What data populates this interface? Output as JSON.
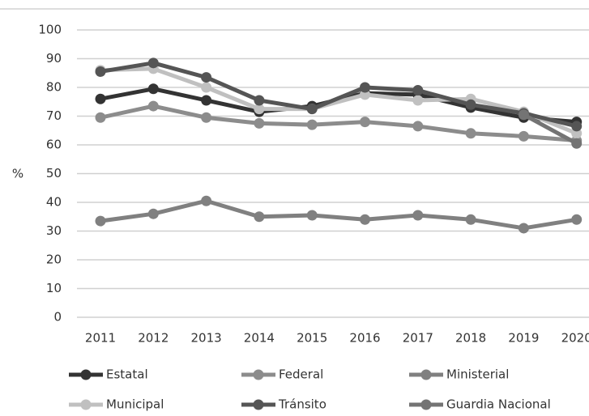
{
  "chart_data": {
    "type": "line",
    "y_label": "%",
    "categories": [
      "2011",
      "2012",
      "2013",
      "2014",
      "2015",
      "2016",
      "2017",
      "2018",
      "2019",
      "2020"
    ],
    "series": [
      {
        "name": "Estatal",
        "color": "#333333",
        "values": [
          76,
          79.5,
          75.5,
          71.5,
          73.5,
          78,
          77.5,
          73,
          69.5,
          68
        ]
      },
      {
        "name": "Federal",
        "color": "#8c8c8c",
        "values": [
          69.5,
          73.5,
          69.5,
          67.5,
          67,
          68,
          66.5,
          64,
          63,
          61.5
        ]
      },
      {
        "name": "Ministerial",
        "color": "#808080",
        "values": [
          33.5,
          36,
          40.5,
          35,
          35.5,
          34,
          35.5,
          34,
          31,
          34
        ]
      },
      {
        "name": "Municipal",
        "color": "#c0c0c0",
        "values": [
          86,
          86.5,
          80,
          72.5,
          72.5,
          77.5,
          75.5,
          76,
          71.5,
          64
        ]
      },
      {
        "name": "Tránsito",
        "color": "#555555",
        "values": [
          85.5,
          88.5,
          83.5,
          75.5,
          72.5,
          80,
          79,
          74,
          71,
          66.5
        ]
      },
      {
        "name": "Guardia Nacional",
        "color": "#747474",
        "values": [
          null,
          null,
          null,
          null,
          null,
          null,
          null,
          null,
          70.5,
          60.5
        ]
      }
    ],
    "ylim": [
      0,
      100
    ],
    "yticks": [
      0,
      10,
      20,
      30,
      40,
      50,
      60,
      70,
      80,
      90,
      100
    ],
    "grid": true
  }
}
